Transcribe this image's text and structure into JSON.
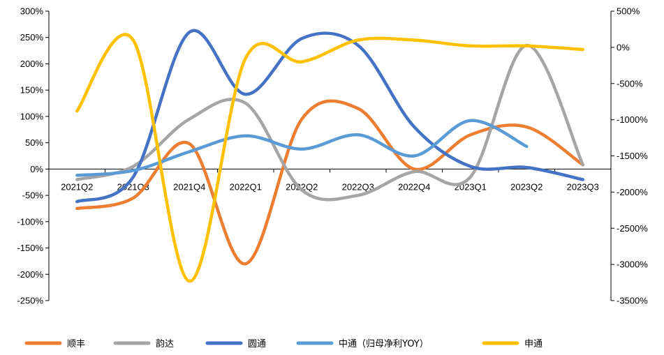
{
  "chart_data": {
    "type": "line",
    "categories": [
      "2021Q2",
      "2021Q3",
      "2021Q4",
      "2022Q1",
      "2022Q2",
      "2022Q3",
      "2022Q4",
      "2023Q1",
      "2023Q2",
      "2023Q3"
    ],
    "left_axis": {
      "ylim": [
        -250,
        300
      ],
      "ticks": [
        "300%",
        "250%",
        "200%",
        "150%",
        "100%",
        "50%",
        "0%",
        "-50%",
        "-100%",
        "-150%",
        "-200%",
        "-250%"
      ]
    },
    "right_axis": {
      "ylim": [
        -3500,
        500
      ],
      "ticks": [
        "500%",
        "0%",
        "-500%",
        "-1000%",
        "-1500%",
        "-2000%",
        "-2500%",
        "-3000%",
        "-3500%"
      ]
    },
    "series": [
      {
        "name": "顺丰",
        "axis": "left",
        "color": "#ED7D31",
        "values": [
          -75,
          -55,
          48,
          -180,
          95,
          115,
          0,
          65,
          80,
          8
        ]
      },
      {
        "name": "韵达",
        "axis": "left",
        "color": "#A5A5A5",
        "values": [
          -20,
          5,
          95,
          125,
          -40,
          -50,
          -5,
          -15,
          235,
          8
        ]
      },
      {
        "name": "圆通",
        "axis": "left",
        "color": "#4472C4",
        "values": [
          -62,
          -15,
          260,
          142,
          248,
          235,
          80,
          5,
          3,
          -20
        ]
      },
      {
        "name": "中通（归母净利YOY）",
        "axis": "left",
        "color": "#5B9BD5",
        "values": [
          -12,
          -3,
          33,
          63,
          38,
          65,
          25,
          92,
          43,
          null
        ]
      },
      {
        "name": "申通",
        "axis": "right",
        "color": "#FFC000",
        "values": [
          -880,
          100,
          -3230,
          -150,
          -200,
          100,
          100,
          20,
          20,
          -30
        ]
      }
    ],
    "legend_position": "bottom"
  }
}
